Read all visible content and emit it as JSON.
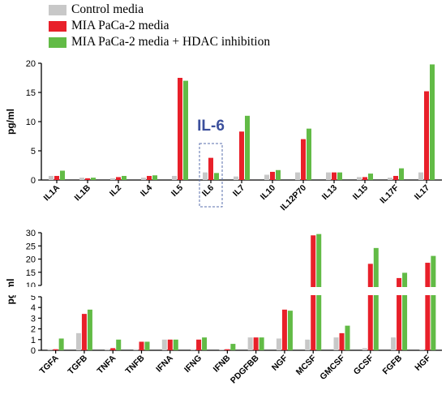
{
  "legend": [
    {
      "label": "Control media",
      "color": "#c8c8c8"
    },
    {
      "label": "MIA PaCa-2 media",
      "color": "#e8202a"
    },
    {
      "label": "MIA PaCa-2 media + HDAC inhibition",
      "color": "#62bb46"
    }
  ],
  "chart_data": [
    {
      "type": "bar",
      "ylabel": "pg/ml",
      "ylim": [
        0,
        20
      ],
      "yticks": [
        0,
        5,
        10,
        15,
        20
      ],
      "categories": [
        "IL1A",
        "IL1B",
        "IL2",
        "IL4",
        "IL5",
        "IL6",
        "IL7",
        "IL10",
        "IL12P70",
        "IL13",
        "IL15",
        "IL17F",
        "IL17"
      ],
      "series": [
        {
          "name": "Control media",
          "values": [
            0.7,
            0.4,
            0.3,
            0.4,
            0.7,
            1.3,
            0.6,
            0.9,
            1.3,
            1.3,
            0.5,
            0.4,
            1.3
          ]
        },
        {
          "name": "MIA PaCa-2 media",
          "values": [
            0.7,
            0.3,
            0.5,
            0.7,
            17.5,
            3.8,
            8.3,
            1.4,
            7.0,
            1.3,
            0.5,
            0.7,
            15.2
          ]
        },
        {
          "name": "MIA PaCa-2 media + HDAC inhibition",
          "values": [
            1.6,
            0.4,
            0.7,
            0.8,
            17.0,
            1.2,
            11.0,
            1.7,
            8.8,
            1.3,
            1.1,
            2.0,
            19.8
          ]
        }
      ],
      "annotation": "IL-6",
      "highlight_category": "IL6"
    },
    {
      "type": "bar",
      "ylabel": "pg/ml",
      "broken_axis": true,
      "lower_ylim": [
        0,
        5
      ],
      "upper_ylim": [
        10,
        30
      ],
      "lower_yticks": [
        0,
        1,
        2,
        3,
        4,
        5
      ],
      "upper_yticks": [
        10,
        15,
        20,
        25,
        30
      ],
      "categories": [
        "TGFA",
        "TGFB",
        "TNFA",
        "TNFB",
        "IFNA",
        "IFNG",
        "IFNB",
        "PDGFBB",
        "NGF",
        "MCSF",
        "GMCSF",
        "GCSF",
        "FGFB",
        "HGF"
      ],
      "series": [
        {
          "name": "Control media",
          "values": [
            0.1,
            1.6,
            0.1,
            0.1,
            1.0,
            0.1,
            0.05,
            1.2,
            1.1,
            1.0,
            1.2,
            0.2,
            1.2,
            0.1
          ]
        },
        {
          "name": "MIA PaCa-2 media",
          "values": [
            0.1,
            3.4,
            0.2,
            0.8,
            1.0,
            1.0,
            0.1,
            1.2,
            3.8,
            29.0,
            1.6,
            18.2,
            12.8,
            18.6
          ]
        },
        {
          "name": "MIA PaCa-2 media + HDAC inhibition",
          "values": [
            1.1,
            3.8,
            1.0,
            0.8,
            1.0,
            1.2,
            0.6,
            1.2,
            3.7,
            29.5,
            2.3,
            24.2,
            14.8,
            21.2
          ]
        }
      ]
    }
  ]
}
